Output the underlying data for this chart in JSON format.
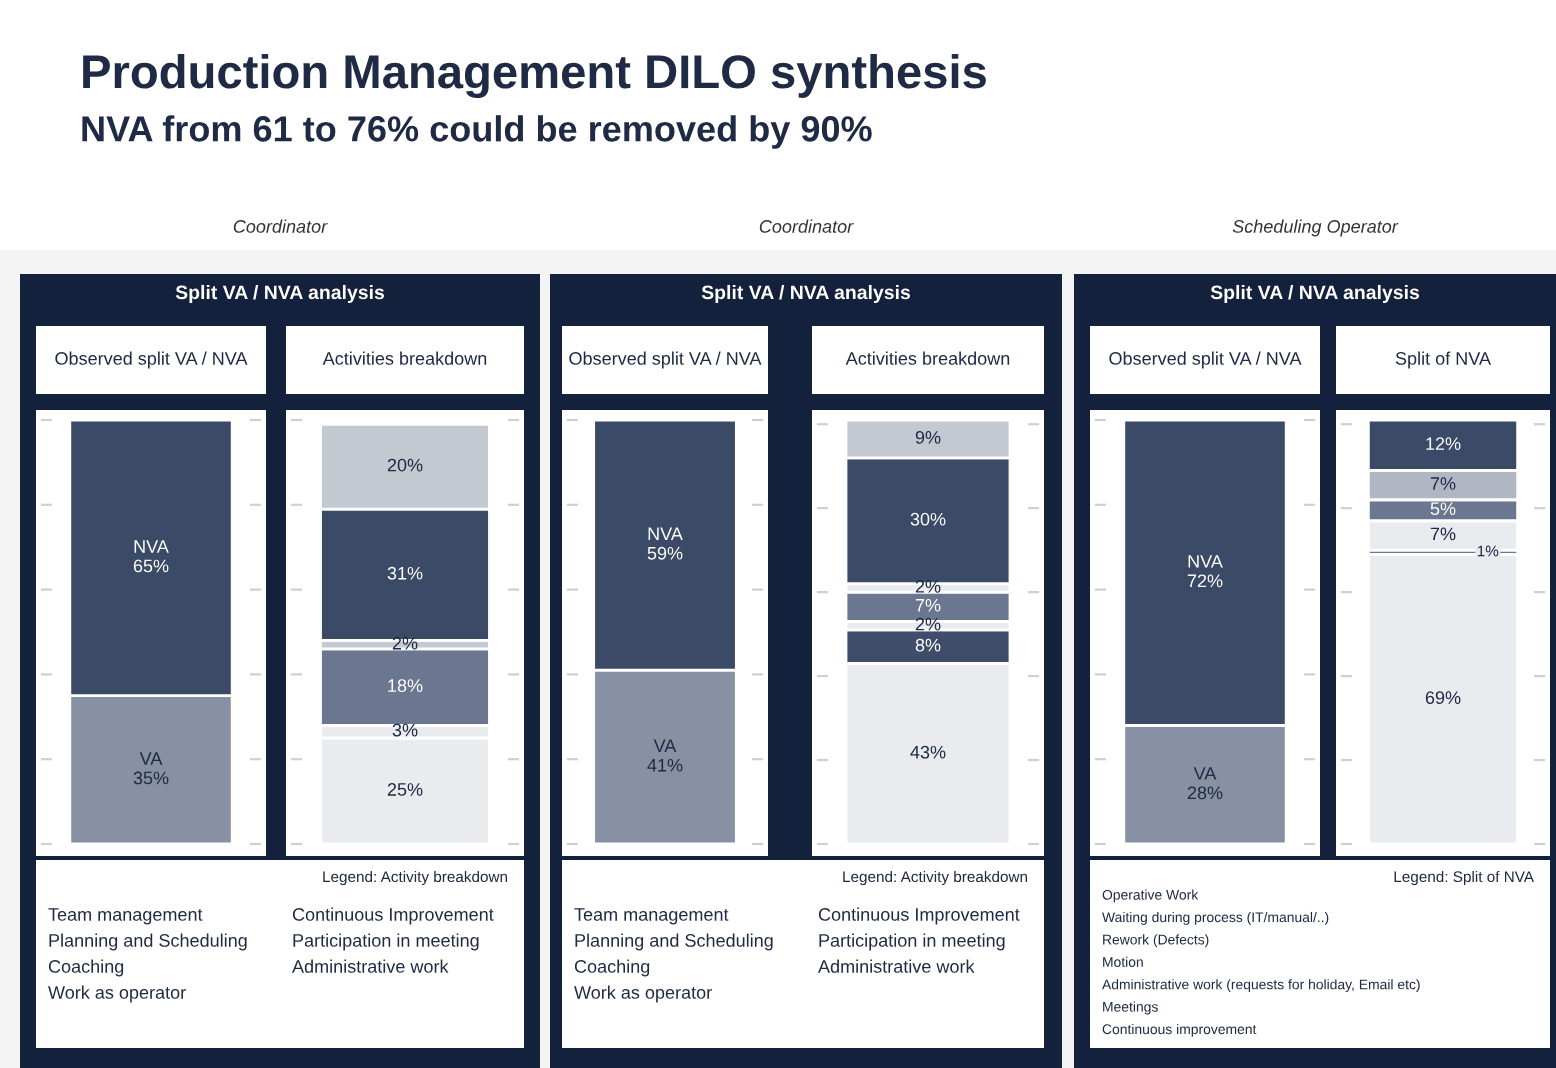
{
  "chart_data": [
    {
      "type": "bar",
      "stacked": true,
      "title": "Observed split VA / NVA",
      "categories": [
        null
      ],
      "ylim": [
        0,
        100
      ],
      "yticks": [
        {
          "value": 0,
          "label": null
        },
        {
          "value": 20,
          "label": null
        },
        {
          "value": 40,
          "label": null
        },
        {
          "value": 60,
          "label": null
        },
        {
          "value": 80,
          "label": null
        },
        {
          "value": 100,
          "label": null
        }
      ],
      "annotations": [
        "Production Management DILO synthesis",
        "NVA from 61 to 76% could be removed by 90%",
        "Coordinator",
        "Split VA / NVA analysis"
      ],
      "series": [
        {
          "color": "#8891a3",
          "values": [
            35
          ],
          "value_labels": [
            "VA\n35%"
          ]
        },
        {
          "color": "#3b4a66",
          "values": [
            65
          ],
          "value_labels": [
            "NVA\n65%"
          ]
        }
      ]
    },
    {
      "type": "bar",
      "stacked": true,
      "title": "Activities breakdown",
      "categories": [
        null
      ],
      "ylim": [
        0,
        100
      ],
      "yticks": [
        {
          "value": 0,
          "label": null
        },
        {
          "value": 20,
          "label": null
        },
        {
          "value": 40,
          "label": null
        },
        {
          "value": 60,
          "label": null
        },
        {
          "value": 80,
          "label": null
        },
        {
          "value": 100,
          "label": null
        }
      ],
      "annotations": [
        "Legend: Activity breakdown",
        "Team management",
        "Planning and Scheduling",
        "Coaching",
        "Work as operator",
        "Continuous Improvement",
        "Participation in meeting",
        "Administrative work"
      ],
      "series": [
        {
          "color": "#e9ebef",
          "values": [
            25
          ],
          "value_labels": [
            "25%"
          ]
        },
        {
          "color": "#e9ebef",
          "values": [
            3
          ],
          "value_labels": [
            "3%"
          ]
        },
        {
          "color": "#6b7791",
          "values": [
            18
          ],
          "value_labels": [
            "18%"
          ]
        },
        {
          "color": "#c5cad3",
          "values": [
            2
          ],
          "value_labels": [
            "2%"
          ]
        },
        {
          "color": "#3b4a66",
          "values": [
            31
          ],
          "value_labels": [
            "31%"
          ]
        },
        {
          "color": "#c3c8d1",
          "values": [
            20
          ],
          "value_labels": [
            "20%"
          ]
        }
      ]
    },
    {
      "type": "bar",
      "stacked": true,
      "title": "Observed split VA / NVA",
      "categories": [
        null
      ],
      "ylim": [
        0,
        100
      ],
      "yticks": [
        {
          "value": 0,
          "label": null
        },
        {
          "value": 20,
          "label": null
        },
        {
          "value": 40,
          "label": null
        },
        {
          "value": 60,
          "label": null
        },
        {
          "value": 80,
          "label": null
        },
        {
          "value": 100,
          "label": null
        }
      ],
      "annotations": [
        "Coordinator",
        "Split VA / NVA analysis"
      ],
      "series": [
        {
          "color": "#8891a3",
          "values": [
            41
          ],
          "value_labels": [
            "VA\n41%"
          ]
        },
        {
          "color": "#3b4a66",
          "values": [
            59
          ],
          "value_labels": [
            "NVA\n59%"
          ]
        }
      ]
    },
    {
      "type": "bar",
      "stacked": true,
      "title": "Activities breakdown",
      "categories": [
        null
      ],
      "ylim": [
        0,
        101
      ],
      "yticks": [
        {
          "value": 0,
          "label": null
        },
        {
          "value": 20,
          "label": null
        },
        {
          "value": 40,
          "label": null
        },
        {
          "value": 60,
          "label": null
        },
        {
          "value": 80,
          "label": null
        },
        {
          "value": 100,
          "label": null
        }
      ],
      "annotations": [
        "Legend: Activity breakdown",
        "Team management",
        "Planning and Scheduling",
        "Coaching",
        "Work as operator",
        "Continuous Improvement",
        "Participation in meeting",
        "Administrative work"
      ],
      "series": [
        {
          "color": "#e9ebef",
          "values": [
            43
          ],
          "value_labels": [
            "43%"
          ]
        },
        {
          "color": "#3f4d6b",
          "values": [
            8
          ],
          "value_labels": [
            "8%"
          ]
        },
        {
          "color": "#e9ebef",
          "values": [
            2
          ],
          "value_labels": [
            "2%"
          ]
        },
        {
          "color": "#6b7791",
          "values": [
            7
          ],
          "value_labels": [
            "7%"
          ]
        },
        {
          "color": "#e9ebef",
          "values": [
            2
          ],
          "value_labels": [
            "2%"
          ]
        },
        {
          "color": "#3b4a66",
          "values": [
            30
          ],
          "value_labels": [
            "30%"
          ]
        },
        {
          "color": "#c3c8d1",
          "values": [
            9
          ],
          "value_labels": [
            "9%"
          ]
        }
      ]
    },
    {
      "type": "bar",
      "stacked": true,
      "title": "Observed split VA / NVA",
      "categories": [
        null
      ],
      "ylim": [
        0,
        100
      ],
      "yticks": [
        {
          "value": 0,
          "label": null
        },
        {
          "value": 20,
          "label": null
        },
        {
          "value": 40,
          "label": null
        },
        {
          "value": 60,
          "label": null
        },
        {
          "value": 80,
          "label": null
        },
        {
          "value": 100,
          "label": null
        }
      ],
      "annotations": [
        "Scheduling Operator",
        "Split VA / NVA analysis"
      ],
      "series": [
        {
          "color": "#8891a3",
          "values": [
            28
          ],
          "value_labels": [
            "VA\n28%"
          ]
        },
        {
          "color": "#3b4a66",
          "values": [
            72
          ],
          "value_labels": [
            "NVA\n72%"
          ]
        }
      ]
    },
    {
      "type": "bar",
      "stacked": true,
      "title": "Split of NVA",
      "categories": [
        null
      ],
      "ylim": [
        0,
        101
      ],
      "yticks": [
        {
          "value": 0,
          "label": null
        },
        {
          "value": 20,
          "label": null
        },
        {
          "value": 40,
          "label": null
        },
        {
          "value": 60,
          "label": null
        },
        {
          "value": 80,
          "label": null
        },
        {
          "value": 100,
          "label": null
        }
      ],
      "annotations": [
        "Legend: Split of NVA",
        "Operative Work",
        "Waiting during process (IT/manual/..)",
        "Rework (Defects)",
        "Motion",
        "Administrative work (requests for holiday, Email etc)",
        "Meetings",
        "Continuous improvement"
      ],
      "series": [
        {
          "color": "#e9ebef",
          "values": [
            69
          ],
          "value_labels": [
            "69%"
          ]
        },
        {
          "color": "#6b7791",
          "values": [
            1
          ],
          "value_labels": [
            "1%"
          ]
        },
        {
          "color": "#e9ebef",
          "values": [
            7
          ],
          "value_labels": [
            "7%"
          ]
        },
        {
          "color": "#6b7791",
          "values": [
            5
          ],
          "value_labels": [
            "5%"
          ]
        },
        {
          "color": "#b0b6c2",
          "values": [
            7
          ],
          "value_labels": [
            "7%"
          ]
        },
        {
          "color": "#3b4a66",
          "values": [
            12
          ],
          "value_labels": [
            "12%"
          ]
        }
      ]
    }
  ]
}
